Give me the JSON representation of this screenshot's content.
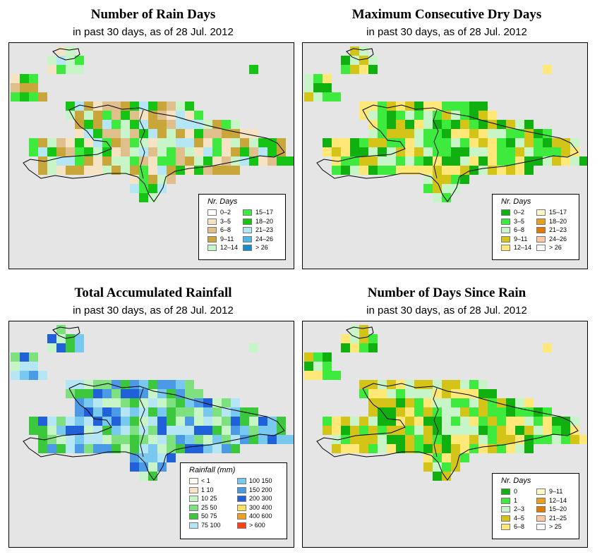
{
  "panels": [
    {
      "id": "rain_days",
      "title": "Number of Rain Days",
      "subtitle": "in past 30 days, as of  28 Jul. 2012",
      "legend": {
        "title": "Nr. Days",
        "left": [
          {
            "label": "0–2",
            "color": "#ffffff"
          },
          {
            "label": "3–5",
            "color": "#f5e3c4"
          },
          {
            "label": "6–8",
            "color": "#dfc08c"
          },
          {
            "label": "9–11",
            "color": "#c9a63a"
          },
          {
            "label": "12–14",
            "color": "#c8f5c8"
          }
        ],
        "right": [
          {
            "label": "15–17",
            "color": "#3fea3f"
          },
          {
            "label": "18–20",
            "color": "#15c415"
          },
          {
            "label": "21–23",
            "color": "#b4e6f5"
          },
          {
            "label": "24–26",
            "color": "#4cb8ea"
          },
          {
            "label": "> 26",
            "color": "#1a8ad0"
          }
        ]
      }
    },
    {
      "id": "max_dry_days",
      "title": "Maximum Consecutive Dry Days",
      "subtitle": "in past 30 days, as of  28 Jul. 2012",
      "legend": {
        "title": "Nr. Days",
        "left": [
          {
            "label": "0–2",
            "color": "#10b010"
          },
          {
            "label": "3–5",
            "color": "#3fea3f"
          },
          {
            "label": "6–8",
            "color": "#c8f5c8"
          },
          {
            "label": "9–11",
            "color": "#d4c418"
          },
          {
            "label": "12–14",
            "color": "#ffe878"
          }
        ],
        "right": [
          {
            "label": "15–17",
            "color": "#fffac8"
          },
          {
            "label": "18–20",
            "color": "#e8a020"
          },
          {
            "label": "21–23",
            "color": "#e07b00"
          },
          {
            "label": "24–26",
            "color": "#ffc8a0"
          },
          {
            "label": "> 26",
            "color": "#ffffff"
          }
        ]
      }
    },
    {
      "id": "total_rainfall",
      "title": "Total Accumulated Rainfall",
      "subtitle": "in past 30 days, as of  28 Jul. 2012",
      "legend": {
        "title": "Rainfall (mm)",
        "left": [
          {
            "label": "< 1",
            "color": "#fffaf0"
          },
          {
            "label": "1   10",
            "color": "#f5e3c4"
          },
          {
            "label": "10   25",
            "color": "#c8f5c8"
          },
          {
            "label": "25   50",
            "color": "#7ee07e"
          },
          {
            "label": "50   75",
            "color": "#3cc83c"
          },
          {
            "label": "75  100",
            "color": "#b4e6f5"
          }
        ],
        "right": [
          {
            "label": "100  150",
            "color": "#78c8f0"
          },
          {
            "label": "150  200",
            "color": "#4a9ae6"
          },
          {
            "label": "200  300",
            "color": "#2060d8"
          },
          {
            "label": "300  400",
            "color": "#ffe060"
          },
          {
            "label": "400  600",
            "color": "#f0a020"
          },
          {
            "label": "> 600",
            "color": "#ff4010"
          }
        ]
      }
    },
    {
      "id": "days_since_rain",
      "title": "Number of Days Since Rain",
      "subtitle": "in past 30 days, as of  28 Jul. 2012",
      "legend": {
        "title": "Nr. Days",
        "left": [
          {
            "label": "0",
            "color": "#10b010"
          },
          {
            "label": "1",
            "color": "#3fea3f"
          },
          {
            "label": "2–3",
            "color": "#c8f5c8"
          },
          {
            "label": "4–5",
            "color": "#d4c418"
          },
          {
            "label": "6–8",
            "color": "#ffe878"
          }
        ],
        "right": [
          {
            "label": "9–11",
            "color": "#fffac8"
          },
          {
            "label": "12–14",
            "color": "#e8a020"
          },
          {
            "label": "15–20",
            "color": "#e07b00"
          },
          {
            "label": "21–25",
            "color": "#ffc8a0"
          },
          {
            "label": "> 25",
            "color": "#ffffff"
          }
        ]
      }
    }
  ]
}
